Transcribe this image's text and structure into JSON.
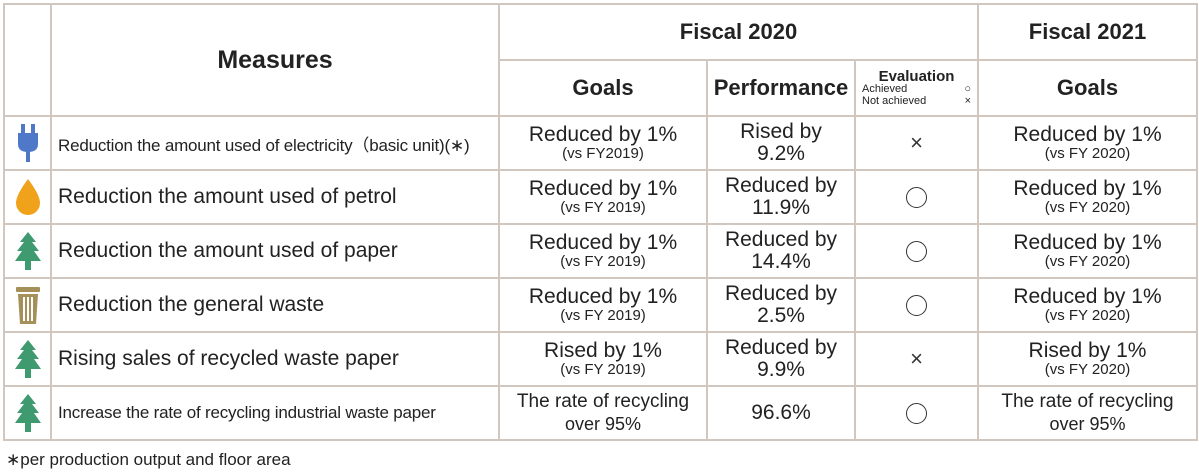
{
  "header": {
    "measures": "Measures",
    "fiscal_2020": "Fiscal 2020",
    "fiscal_2021": "Fiscal 2021",
    "goals": "Goals",
    "performance": "Performance",
    "evaluation": "Evaluation",
    "achieved": "Achieved",
    "not_achieved": "Not achieved"
  },
  "rows": [
    {
      "icon": "plug-icon",
      "measure": "Reduction the amount used of electricity（basic unit)(∗)",
      "goal_main": "Reduced by 1%",
      "goal_sub": "(vs FY2019)",
      "perf_1": "Rised by",
      "perf_2": "9.2%",
      "eval": "cross",
      "goal2021_main": "Reduced by 1%",
      "goal2021_sub": "(vs FY 2020)"
    },
    {
      "icon": "drop-icon",
      "measure": "Reduction the amount used of petrol",
      "goal_main": "Reduced by 1%",
      "goal_sub": "(vs FY 2019)",
      "perf_1": "Reduced by",
      "perf_2": "11.9%",
      "eval": "circle",
      "goal2021_main": "Reduced by 1%",
      "goal2021_sub": "(vs FY 2020)"
    },
    {
      "icon": "tree-icon",
      "measure": "Reduction the amount used of paper",
      "goal_main": "Reduced by 1%",
      "goal_sub": "(vs FY 2019)",
      "perf_1": "Reduced by",
      "perf_2": "14.4%",
      "eval": "circle",
      "goal2021_main": "Reduced by 1%",
      "goal2021_sub": "(vs FY 2020)"
    },
    {
      "icon": "trash-icon",
      "measure": "Reduction the general waste",
      "goal_main": "Reduced by 1%",
      "goal_sub": "(vs FY 2019)",
      "perf_1": "Reduced by",
      "perf_2": "2.5%",
      "eval": "circle",
      "goal2021_main": "Reduced by 1%",
      "goal2021_sub": "(vs FY 2020)"
    },
    {
      "icon": "tree-icon",
      "measure": "Rising sales of recycled waste paper",
      "goal_main": "Rised by 1%",
      "goal_sub": "(vs FY 2019)",
      "perf_1": "Reduced by",
      "perf_2": "9.9%",
      "eval": "cross",
      "goal2021_main": "Rised by 1%",
      "goal2021_sub": "(vs FY 2020)"
    },
    {
      "icon": "tree-icon",
      "measure": "Increase the rate of recycling industrial waste paper",
      "goal_main": "The rate of recycling",
      "goal_sub": "over 95%",
      "perf_1": "96.6%",
      "perf_2": "",
      "eval": "circle",
      "goal2021_main": "The rate of recycling",
      "goal2021_sub": "over 95%"
    }
  ],
  "footnote": "∗per production output and floor area",
  "colors": {
    "border": "#d2c7bf",
    "plug": "#4f79c8",
    "drop": "#f0a21a",
    "tree": "#3f9a70",
    "trash": "#a5905a"
  }
}
